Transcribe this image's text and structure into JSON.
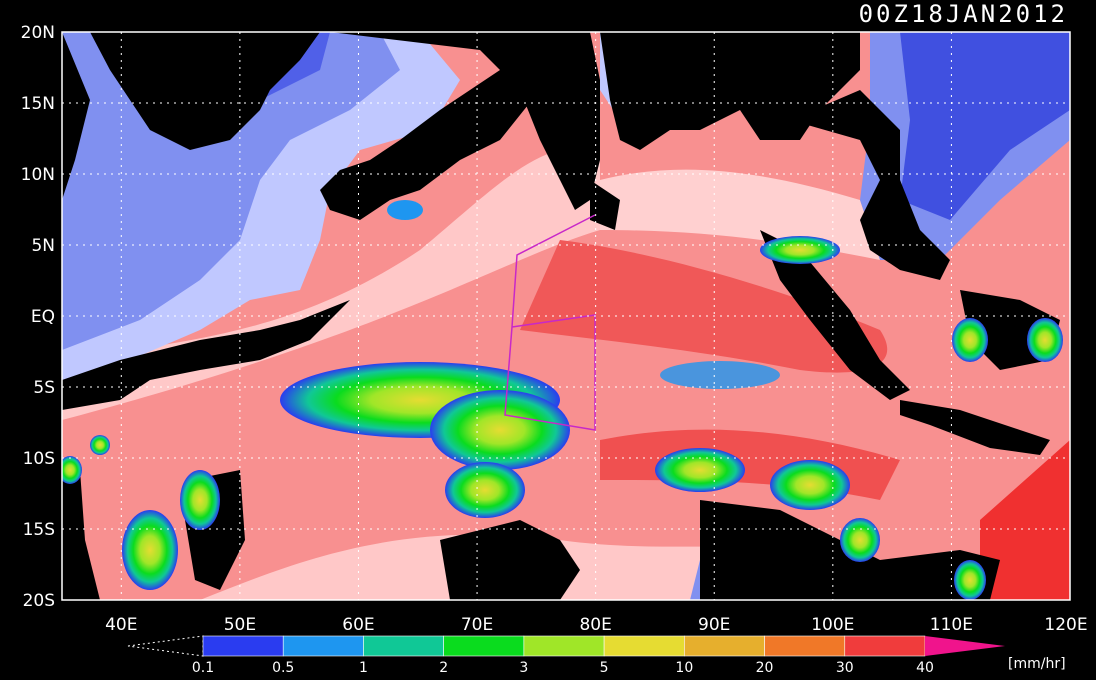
{
  "timestamp": "00Z18JAN2012",
  "lat_labels": [
    "20N",
    "15N",
    "10N",
    "5N",
    "EQ",
    "5S",
    "10S",
    "15S",
    "20S"
  ],
  "lon_labels": [
    "40E",
    "50E",
    "60E",
    "70E",
    "80E",
    "90E",
    "100E",
    "110E",
    "120E"
  ],
  "colorbar": {
    "unit": "[mm/hr]",
    "ticks": [
      "0.1",
      "0.5",
      "1",
      "2",
      "3",
      "5",
      "10",
      "20",
      "30",
      "40"
    ],
    "colors": [
      "#2a3cf0",
      "#1e96f0",
      "#10c896",
      "#0adc1e",
      "#a0e628",
      "#e6dc32",
      "#e6af2d",
      "#f07828",
      "#f03c3c",
      "#f0148c"
    ]
  },
  "map_colors": {
    "land": "#000000",
    "ocean_dry": "#ffd0d0",
    "ocean_mid": "#f89090",
    "ocean_wet": "#f04848",
    "cold_light": "#c0c8ff",
    "cold_mid": "#8090f0",
    "cold_dark": "#4050e0",
    "grid": "#ffffff",
    "track": "#c828c8"
  }
}
